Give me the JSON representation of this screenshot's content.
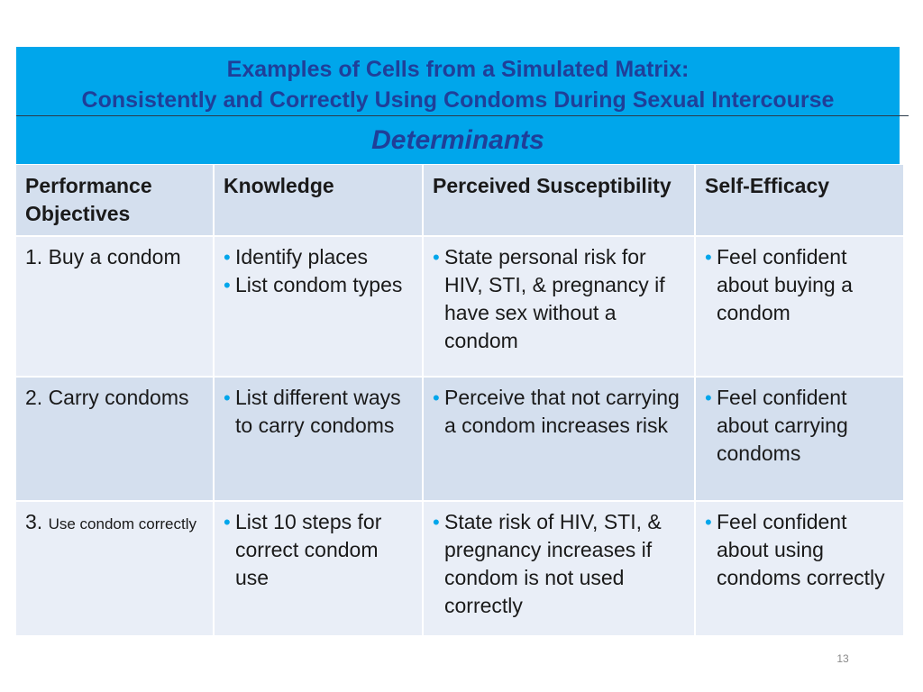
{
  "header": {
    "title_line1": "Examples of Cells from a Simulated Matrix:",
    "title_line2": "Consistently and Correctly Using Condoms During Sexual Intercourse",
    "subheader": "Determinants"
  },
  "columns": [
    "Performance Objectives",
    "Knowledge",
    "Perceived Susceptibility",
    "Self-Efficacy"
  ],
  "rows": [
    {
      "objective": "1. Buy a condom",
      "knowledge": [
        "Identify places",
        "List condom types"
      ],
      "susceptibility": [
        "State personal risk for HIV, STI, & pregnancy if have sex without a condom"
      ],
      "efficacy": [
        "Feel confident about buying a condom"
      ]
    },
    {
      "objective": "2. Carry condoms",
      "knowledge": [
        "List different ways to carry condoms"
      ],
      "susceptibility": [
        "Perceive that not carrying a condom increases risk"
      ],
      "efficacy": [
        "Feel confident about carrying condoms"
      ]
    },
    {
      "objective_num": "3.",
      "objective_text": "Use condom correctly",
      "knowledge": [
        "List 10 steps for correct condom use"
      ],
      "susceptibility": [
        "State risk of HIV, STI, & pregnancy increases if condom is not used correctly"
      ],
      "efficacy": [
        "Feel confident about using condoms correctly"
      ]
    }
  ],
  "page_number": "13"
}
